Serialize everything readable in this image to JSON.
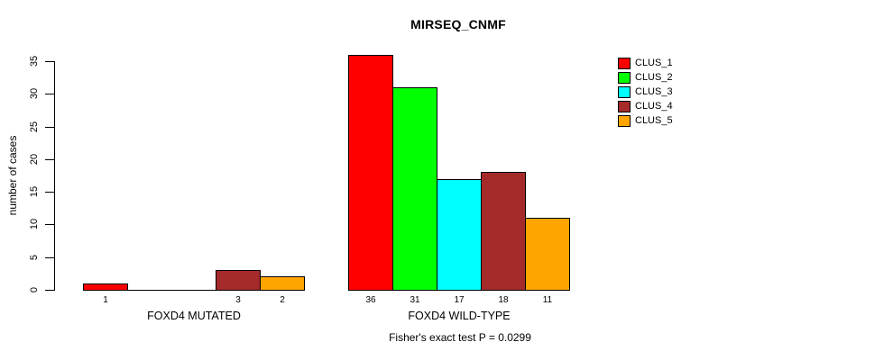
{
  "chart_data": {
    "type": "bar",
    "title": "MIRSEQ_CNMF",
    "ylabel": "number of cases",
    "xlabel": "",
    "yticks": [
      0,
      5,
      10,
      15,
      20,
      25,
      30,
      35
    ],
    "ylim": [
      0,
      37
    ],
    "grid": false,
    "legend_position": "right-inside",
    "annotation": "Fisher's exact test P = 0.0299",
    "series": [
      {
        "name": "CLUS_1",
        "color": "#FF0000"
      },
      {
        "name": "CLUS_2",
        "color": "#00FF00"
      },
      {
        "name": "CLUS_3",
        "color": "#00FFFF"
      },
      {
        "name": "CLUS_4",
        "color": "#A52A2A"
      },
      {
        "name": "CLUS_5",
        "color": "#FFA500"
      }
    ],
    "groups": [
      {
        "label": "FOXD4 MUTATED",
        "values": [
          1,
          0,
          0,
          3,
          2
        ],
        "bar_labels": [
          "1",
          "",
          "",
          "3",
          "2"
        ]
      },
      {
        "label": "FOXD4 WILD-TYPE",
        "values": [
          36,
          31,
          17,
          18,
          11
        ],
        "bar_labels": [
          "36",
          "31",
          "17",
          "18",
          "11"
        ]
      }
    ]
  }
}
